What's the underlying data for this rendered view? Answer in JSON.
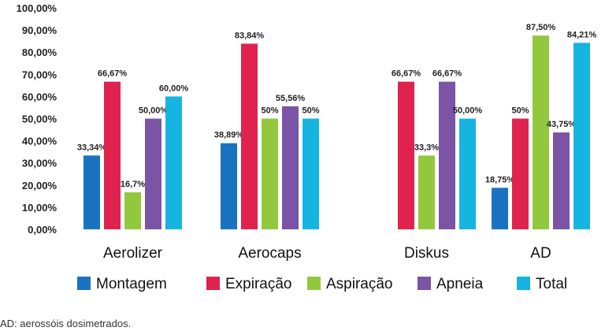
{
  "chart_data": {
    "type": "bar",
    "categories": [
      "Aerolizer",
      "Aerocaps",
      "Diskus",
      "AD"
    ],
    "ylim": [
      0,
      100
    ],
    "ytick_labels": [
      "0,00%",
      "10,00%",
      "20,00%",
      "30,00%",
      "40,00%",
      "50,00%",
      "60,00%",
      "70,00%",
      "80,00%",
      "90,00%",
      "100,00%"
    ],
    "legend_position": "bottom",
    "series": [
      {
        "name": "Montagem",
        "color": "#1a73c1",
        "values": [
          33.34,
          38.89,
          null,
          18.75
        ],
        "labels": [
          "33,34%",
          "38,89%",
          "",
          "18,75%"
        ]
      },
      {
        "name": "Expiração",
        "color": "#e0234e",
        "values": [
          66.67,
          83.84,
          66.67,
          50
        ],
        "labels": [
          "66,67%",
          "83,84%",
          "66,67%",
          "50%"
        ]
      },
      {
        "name": "Aspiração",
        "color": "#92c83e",
        "values": [
          16.7,
          50,
          33.3,
          87.5
        ],
        "labels": [
          "16,7%",
          "50%",
          "33,3%",
          "87,50%"
        ]
      },
      {
        "name": "Apneia",
        "color": "#7b54a6",
        "values": [
          50,
          55.56,
          66.67,
          43.75
        ],
        "labels": [
          "50,00%",
          "55,56%",
          "66,67%",
          "43,75%"
        ]
      },
      {
        "name": "Total",
        "color": "#16b4e0",
        "values": [
          60,
          50,
          50,
          84.21
        ],
        "labels": [
          "60,00%",
          "50%",
          "50,00%",
          "84,21%"
        ]
      }
    ]
  },
  "footnote": "AD: aerossóis dosimetrados."
}
